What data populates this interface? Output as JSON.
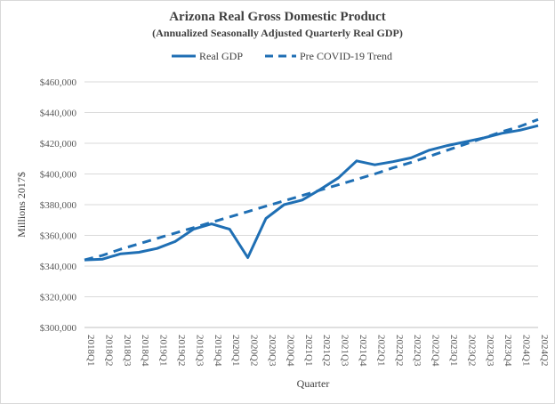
{
  "chart_data": {
    "type": "line",
    "title": "Arizona  Real Gross Domestic Product",
    "subtitle": "(Annualized  Seasonally Adjusted  Quarterly Real GDP)",
    "xlabel": "Quarter",
    "ylabel": "Millions 2017$",
    "ylim": [
      300000,
      460000
    ],
    "y_ticks": [
      300000,
      320000,
      340000,
      360000,
      380000,
      400000,
      420000,
      440000,
      460000
    ],
    "y_tick_labels": [
      "$300,000",
      "$320,000",
      "$340,000",
      "$360,000",
      "$380,000",
      "$400,000",
      "$420,000",
      "$440,000",
      "$460,000"
    ],
    "grid": "horizontal",
    "legend_position": "top",
    "categories": [
      "2018Q1",
      "2018Q2",
      "2018Q3",
      "2018Q4",
      "2019Q1",
      "2019Q2",
      "2019Q3",
      "2019Q4",
      "2020Q1",
      "2020Q2",
      "2020Q3",
      "2020Q4",
      "2021Q1",
      "2021Q2",
      "2021Q3",
      "2021Q4",
      "2022Q1",
      "2022Q2",
      "2022Q3",
      "2022Q4",
      "2023Q1",
      "2023Q2",
      "2023Q3",
      "2023Q4",
      "2024Q1",
      "2024Q2"
    ],
    "series": [
      {
        "name": "Real GDP",
        "style": "solid",
        "color": "#1f6fb4",
        "values": [
          344000,
          344500,
          348000,
          349000,
          351500,
          356000,
          364000,
          367500,
          364000,
          345500,
          371000,
          380000,
          383000,
          390000,
          397500,
          408500,
          406000,
          408000,
          410500,
          415500,
          418500,
          421000,
          423500,
          426500,
          428500,
          431500
        ]
      },
      {
        "name": "Pre COVID-19 Trend",
        "style": "dashed",
        "color": "#1f6fb4",
        "values": [
          344000,
          347000,
          351000,
          354500,
          358000,
          361500,
          365000,
          368500,
          372000,
          375500,
          379000,
          382500,
          386000,
          389500,
          393000,
          396500,
          400000,
          404000,
          407500,
          411500,
          415500,
          419500,
          423500,
          427500,
          431000,
          435500
        ]
      }
    ]
  }
}
